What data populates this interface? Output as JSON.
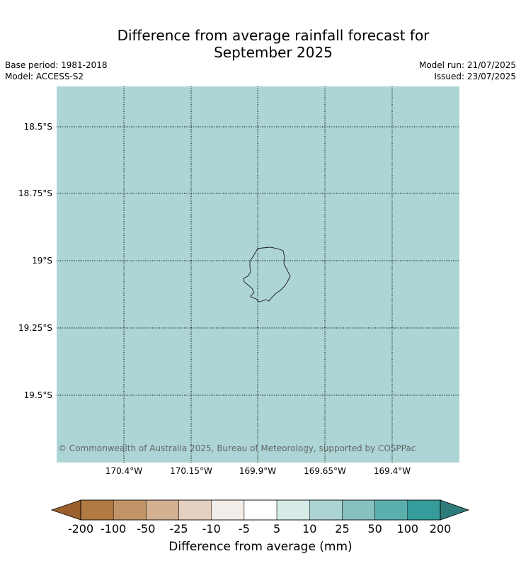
{
  "title": {
    "line1": "Difference from average rainfall forecast for",
    "line2": "September 2025"
  },
  "meta": {
    "base_period": "Base period: 1981-2018",
    "model": "Model: ACCESS-S2",
    "model_run": "Model run: 21/07/2025",
    "issued": "Issued: 23/07/2025"
  },
  "map": {
    "fill_color": "#add5d5",
    "lat_labels": [
      "18.5°S",
      "18.75°S",
      "19°S",
      "19.25°S",
      "19.5°S"
    ],
    "lon_labels": [
      "170.4°W",
      "170.15°W",
      "169.9°W",
      "169.65°W",
      "169.4°W"
    ],
    "credit": "© Commonwealth of Australia 2025, Bureau of Meteorology, supported by COSPPac"
  },
  "colorbar": {
    "title": "Difference from average (mm)",
    "tick_labels": [
      "-200",
      "-100",
      "-50",
      "-25",
      "-10",
      "-5",
      "5",
      "10",
      "25",
      "50",
      "100",
      "200"
    ],
    "low_extend_color": "#9a5f2c",
    "high_extend_color": "#2e7b7b",
    "colors": [
      "#b07a42",
      "#c19468",
      "#d4b191",
      "#e6d0bf",
      "#f2ede8",
      "#ffffff",
      "#d6ebe8",
      "#acd4d2",
      "#87c1bf",
      "#5bb0ae",
      "#369c9b"
    ]
  }
}
